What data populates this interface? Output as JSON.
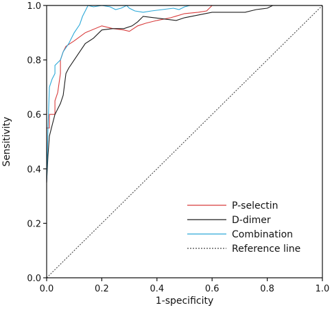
{
  "chart_data": {
    "type": "line",
    "xlabel": "1-specificity",
    "ylabel": "Sensitivity",
    "xlim": [
      0,
      1
    ],
    "ylim": [
      0,
      1
    ],
    "xticks": [
      "0.0",
      "0.2",
      "0.4",
      "0.6",
      "0.8",
      "1.0"
    ],
    "yticks": [
      "0.0",
      "0.2",
      "0.4",
      "0.6",
      "0.8",
      "1.0"
    ],
    "legend_position": "bottom-right",
    "series": [
      {
        "name": "P-selectin",
        "color": "#d83a3a",
        "dash": "none",
        "points": [
          [
            0,
            0.35
          ],
          [
            0,
            0.55
          ],
          [
            0.01,
            0.55
          ],
          [
            0.01,
            0.6
          ],
          [
            0.03,
            0.6
          ],
          [
            0.03,
            0.65
          ],
          [
            0.04,
            0.68
          ],
          [
            0.05,
            0.75
          ],
          [
            0.05,
            0.8
          ],
          [
            0.06,
            0.83
          ],
          [
            0.07,
            0.85
          ],
          [
            0.1,
            0.87
          ],
          [
            0.14,
            0.9
          ],
          [
            0.2,
            0.925
          ],
          [
            0.24,
            0.915
          ],
          [
            0.28,
            0.91
          ],
          [
            0.3,
            0.905
          ],
          [
            0.33,
            0.925
          ],
          [
            0.36,
            0.935
          ],
          [
            0.4,
            0.945
          ],
          [
            0.45,
            0.955
          ],
          [
            0.5,
            0.97
          ],
          [
            0.55,
            0.975
          ],
          [
            0.58,
            0.98
          ],
          [
            0.6,
            1.0
          ],
          [
            1.0,
            1.0
          ]
        ]
      },
      {
        "name": "D-dimer",
        "color": "#1a1a1a",
        "dash": "none",
        "points": [
          [
            0,
            0.35
          ],
          [
            0.005,
            0.45
          ],
          [
            0.01,
            0.52
          ],
          [
            0.02,
            0.56
          ],
          [
            0.03,
            0.6
          ],
          [
            0.04,
            0.62
          ],
          [
            0.05,
            0.64
          ],
          [
            0.06,
            0.67
          ],
          [
            0.07,
            0.75
          ],
          [
            0.08,
            0.77
          ],
          [
            0.1,
            0.8
          ],
          [
            0.12,
            0.83
          ],
          [
            0.14,
            0.86
          ],
          [
            0.17,
            0.88
          ],
          [
            0.2,
            0.91
          ],
          [
            0.24,
            0.915
          ],
          [
            0.28,
            0.915
          ],
          [
            0.31,
            0.925
          ],
          [
            0.33,
            0.94
          ],
          [
            0.35,
            0.96
          ],
          [
            0.39,
            0.955
          ],
          [
            0.43,
            0.95
          ],
          [
            0.47,
            0.945
          ],
          [
            0.5,
            0.955
          ],
          [
            0.55,
            0.965
          ],
          [
            0.6,
            0.975
          ],
          [
            0.66,
            0.975
          ],
          [
            0.72,
            0.975
          ],
          [
            0.76,
            0.985
          ],
          [
            0.8,
            0.99
          ],
          [
            0.82,
            1.0
          ],
          [
            1.0,
            1.0
          ]
        ]
      },
      {
        "name": "Combination",
        "color": "#2aa8d8",
        "dash": "none",
        "points": [
          [
            0,
            0.35
          ],
          [
            0.005,
            0.55
          ],
          [
            0.01,
            0.7
          ],
          [
            0.02,
            0.73
          ],
          [
            0.03,
            0.75
          ],
          [
            0.03,
            0.78
          ],
          [
            0.05,
            0.8
          ],
          [
            0.06,
            0.83
          ],
          [
            0.08,
            0.86
          ],
          [
            0.1,
            0.9
          ],
          [
            0.12,
            0.93
          ],
          [
            0.13,
            0.96
          ],
          [
            0.14,
            0.98
          ],
          [
            0.15,
            1.0
          ],
          [
            0.17,
            0.995
          ],
          [
            0.2,
            1.0
          ],
          [
            0.23,
            0.995
          ],
          [
            0.25,
            0.985
          ],
          [
            0.27,
            0.99
          ],
          [
            0.29,
            1.0
          ],
          [
            0.3,
            0.99
          ],
          [
            0.32,
            0.98
          ],
          [
            0.35,
            0.975
          ],
          [
            0.38,
            0.98
          ],
          [
            0.42,
            0.985
          ],
          [
            0.46,
            0.99
          ],
          [
            0.48,
            0.985
          ],
          [
            0.5,
            0.995
          ],
          [
            0.52,
            1.0
          ],
          [
            1.0,
            1.0
          ]
        ]
      },
      {
        "name": "Reference line",
        "color": "#444444",
        "dash": "2,2",
        "points": [
          [
            0,
            0
          ],
          [
            1,
            1
          ]
        ]
      }
    ]
  }
}
